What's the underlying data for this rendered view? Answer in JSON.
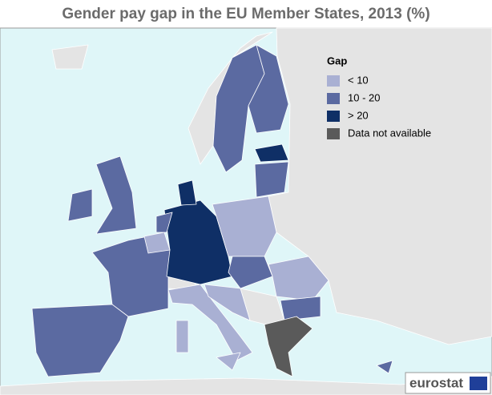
{
  "title": "Gender pay gap in the EU Member States, 2013 (%)",
  "legend": {
    "title": "Gap",
    "items": [
      {
        "label": "< 10",
        "color": "#a9b0d3"
      },
      {
        "label": "10 - 20",
        "color": "#5b6aa1"
      },
      {
        "label": "> 20",
        "color": "#0f2f66"
      },
      {
        "label": "Data not available",
        "color": "#5a5a5a"
      }
    ]
  },
  "logo": "eurostat"
}
